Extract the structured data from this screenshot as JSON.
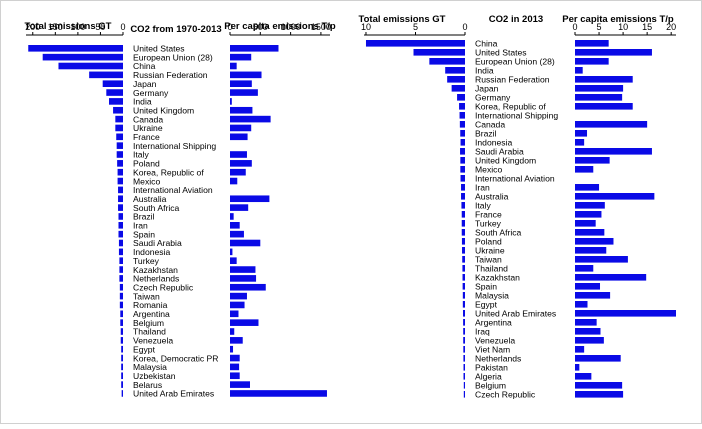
{
  "chart_data": [
    {
      "type": "bar",
      "panel": "left",
      "center_title": "CO2 from 1970-2013",
      "left_title": "Total emissions GT",
      "right_title": "Per capita emissions T/p",
      "left_ticks": [
        "200",
        "150",
        "100",
        "50",
        "0"
      ],
      "left_tick_values": [
        200,
        150,
        100,
        50,
        0
      ],
      "left_xlim": [
        0,
        215
      ],
      "right_ticks": [
        "0",
        "500",
        "1000",
        "1500"
      ],
      "right_tick_values": [
        0,
        500,
        1000,
        1500
      ],
      "right_xlim": [
        0,
        1650
      ],
      "categories": [
        "United States",
        "European Union (28)",
        "China",
        "Russian Federation",
        "Japan",
        "Germany",
        "India",
        "United Kingdom",
        "Canada",
        "Ukraine",
        "France",
        "International Shipping",
        "Italy",
        "Poland",
        "Korea, Republic of",
        "Mexico",
        "International Aviation",
        "Australia",
        "South Africa",
        "Brazil",
        "Iran",
        "Spain",
        "Saudi Arabia",
        "Indonesia",
        "Turkey",
        "Kazakhstan",
        "Netherlands",
        "Czech Republic",
        "Taiwan",
        "Romania",
        "Argentina",
        "Belgium",
        "Thailand",
        "Venezuela",
        "Egypt",
        "Korea, Democratic PR",
        "Malaysia",
        "Uzbekistan",
        "Belarus",
        "United Arab Emirates"
      ],
      "total_values": [
        210,
        178,
        143,
        75,
        45,
        37,
        31,
        22,
        17,
        17,
        15,
        14,
        14,
        13,
        12,
        12,
        11,
        11,
        11,
        10,
        10,
        10,
        9,
        9,
        8,
        8,
        8,
        7,
        7,
        7,
        6,
        6,
        5,
        5,
        4,
        4,
        4,
        4,
        4,
        3
      ],
      "per_capita_values": [
        800,
        350,
        110,
        520,
        360,
        460,
        30,
        370,
        670,
        350,
        290,
        0,
        280,
        360,
        260,
        120,
        0,
        650,
        300,
        60,
        160,
        230,
        500,
        40,
        110,
        420,
        430,
        590,
        280,
        240,
        140,
        470,
        70,
        210,
        50,
        160,
        150,
        160,
        330,
        1600
      ]
    },
    {
      "type": "bar",
      "panel": "right",
      "center_title": "CO2 in 2013",
      "left_title": "Total emissions GT",
      "right_title": "Per capita emissions T/p",
      "left_ticks": [
        "10",
        "5",
        "0"
      ],
      "left_tick_values": [
        10,
        5,
        0
      ],
      "left_xlim": [
        0,
        10.2
      ],
      "right_ticks": [
        "0",
        "5",
        "10",
        "15",
        "20"
      ],
      "right_tick_values": [
        0,
        5,
        10,
        15,
        20
      ],
      "right_xlim": [
        0,
        21
      ],
      "categories": [
        "China",
        "United States",
        "European Union (28)",
        "India",
        "Russian Federation",
        "Japan",
        "Germany",
        "Korea, Republic of",
        "International Shipping",
        "Canada",
        "Brazil",
        "Indonesia",
        "Saudi Arabia",
        "United Kingdom",
        "Mexico",
        "International Aviation",
        "Iran",
        "Australia",
        "Italy",
        "France",
        "Turkey",
        "South Africa",
        "Poland",
        "Ukraine",
        "Taiwan",
        "Thailand",
        "Kazakhstan",
        "Spain",
        "Malaysia",
        "Egypt",
        "United Arab Emirates",
        "Argentina",
        "Iraq",
        "Venezuela",
        "Viet Nam",
        "Netherlands",
        "Pakistan",
        "Algeria",
        "Belgium",
        "Czech Republic"
      ],
      "total_values": [
        10.0,
        5.2,
        3.6,
        2.0,
        1.8,
        1.35,
        0.8,
        0.6,
        0.55,
        0.52,
        0.48,
        0.45,
        0.5,
        0.47,
        0.47,
        0.45,
        0.4,
        0.4,
        0.36,
        0.33,
        0.33,
        0.33,
        0.31,
        0.3,
        0.28,
        0.26,
        0.25,
        0.24,
        0.22,
        0.22,
        0.2,
        0.19,
        0.18,
        0.18,
        0.17,
        0.16,
        0.15,
        0.15,
        0.11,
        0.11
      ],
      "per_capita_values": [
        7.0,
        16.0,
        7.0,
        1.6,
        12.0,
        10.0,
        9.8,
        12.0,
        0,
        15.0,
        2.5,
        1.9,
        16.0,
        7.2,
        3.8,
        0,
        5.0,
        16.5,
        6.2,
        5.5,
        4.3,
        6.1,
        8.0,
        6.5,
        11.0,
        3.8,
        14.8,
        5.2,
        7.3,
        2.6,
        21.0,
        4.5,
        5.3,
        6.0,
        1.9,
        9.5,
        0.9,
        3.4,
        9.8,
        10.0
      ]
    }
  ]
}
